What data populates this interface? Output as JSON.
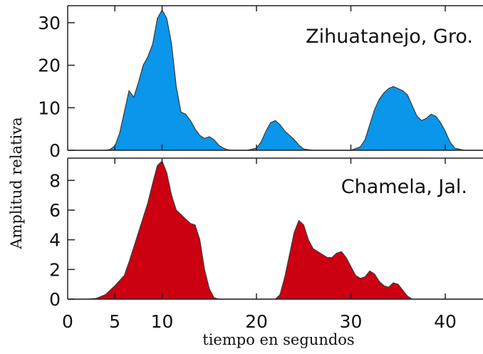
{
  "chart_data": {
    "type": "area",
    "xlabel": "tiempo en segundos",
    "ylabel": "Amplitud relativa",
    "xlim": [
      0,
      44
    ],
    "xticks": [
      0,
      5,
      10,
      20,
      30,
      40
    ],
    "panels": [
      {
        "name": "Zihuatanejo, Gro.",
        "color": "#0a96ea",
        "ylim": [
          0,
          34
        ],
        "yticks": [
          0,
          10,
          20,
          30
        ],
        "x": [
          0,
          4,
          4.5,
          5,
          5.5,
          6,
          6.5,
          7,
          7.5,
          8,
          8.5,
          9,
          9.5,
          10,
          10.5,
          11,
          11.5,
          12,
          12.5,
          13,
          13.5,
          14,
          14.5,
          15,
          15.5,
          16,
          16.5,
          17,
          17.5,
          18,
          19,
          20,
          20.5,
          21,
          21.5,
          22,
          22.5,
          23,
          23.5,
          24,
          24.5,
          25,
          26,
          27,
          28,
          29,
          30,
          31,
          31.5,
          32,
          32.5,
          33,
          33.5,
          34,
          34.5,
          35,
          35.5,
          36,
          36.5,
          37,
          37.5,
          38,
          38.5,
          39,
          39.5,
          40,
          40.5,
          41,
          42,
          44
        ],
        "values": [
          0,
          0,
          0.2,
          1,
          4,
          9,
          14,
          12.5,
          16,
          20,
          22,
          25,
          31,
          33,
          31,
          25,
          15,
          9,
          8.5,
          7,
          5,
          3.5,
          2.8,
          3.2,
          2.5,
          1.2,
          0.5,
          0.1,
          0,
          0,
          0,
          0.5,
          2,
          4.5,
          6.5,
          7,
          6,
          4.5,
          3.5,
          2.5,
          1.2,
          0.3,
          0,
          0,
          0,
          0,
          0,
          0.8,
          2.5,
          6,
          9.5,
          12,
          13.5,
          14.5,
          15,
          14.5,
          14,
          13,
          10.5,
          8,
          7,
          7.5,
          8.5,
          8,
          6.5,
          4.5,
          2,
          0.5,
          0,
          0
        ]
      },
      {
        "name": "Chamela, Jal.",
        "color": "#cc0011",
        "ylim": [
          0,
          9.5
        ],
        "yticks": [
          0,
          2,
          4,
          6,
          8
        ],
        "x": [
          0,
          2,
          3,
          4,
          5,
          6,
          6.5,
          7,
          7.5,
          8,
          8.5,
          9,
          9.5,
          10,
          10.5,
          11,
          11.5,
          12,
          12.5,
          13,
          13.5,
          14,
          14.5,
          15,
          15.5,
          16,
          16.5,
          17,
          18,
          20,
          22,
          22.5,
          23,
          23.5,
          24,
          24.5,
          25,
          25.5,
          26,
          26.5,
          27,
          27.5,
          28,
          28.5,
          29,
          29.5,
          30,
          30.5,
          31,
          31.5,
          32,
          32.5,
          33,
          33.5,
          34,
          34.5,
          35,
          35.5,
          36,
          36.5,
          37,
          38,
          40,
          42,
          44
        ],
        "values": [
          0,
          0,
          0.05,
          0.3,
          0.9,
          1.6,
          2.5,
          3.5,
          4.5,
          5.5,
          6.5,
          7.8,
          9,
          9.3,
          8.5,
          7,
          6,
          5.7,
          5.4,
          5.1,
          5,
          4,
          2,
          0.7,
          0.1,
          0,
          0,
          0,
          0,
          0,
          0,
          0.3,
          1.5,
          3,
          4.5,
          5.3,
          5,
          4,
          3.4,
          3.2,
          3,
          2.8,
          2.8,
          3.1,
          3.2,
          2.8,
          2.2,
          1.6,
          1.4,
          1.5,
          1.9,
          1.7,
          1.2,
          0.9,
          0.8,
          1.1,
          1,
          0.6,
          0.2,
          0,
          0,
          0,
          0,
          0,
          0
        ]
      }
    ]
  }
}
